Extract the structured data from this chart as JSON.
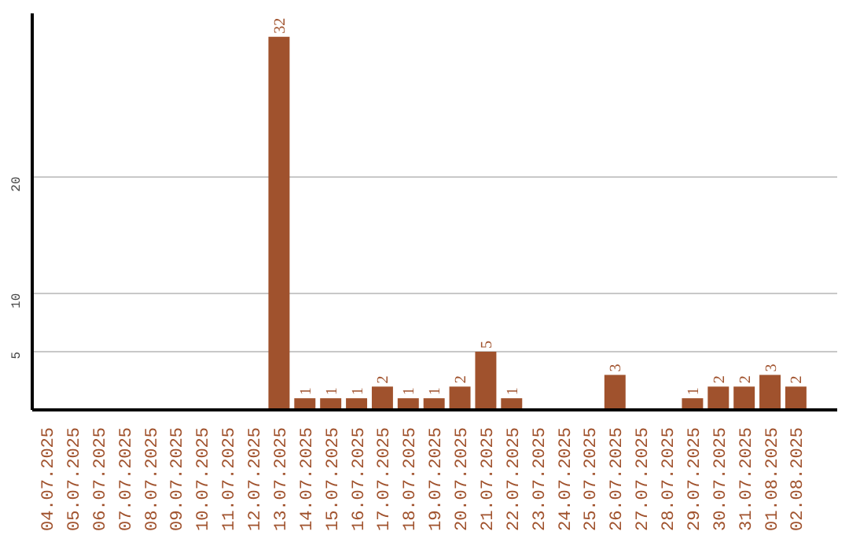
{
  "chart_data": {
    "type": "bar",
    "categories": [
      "04.07.2025",
      "05.07.2025",
      "06.07.2025",
      "07.07.2025",
      "08.07.2025",
      "09.07.2025",
      "10.07.2025",
      "11.07.2025",
      "12.07.2025",
      "13.07.2025",
      "14.07.2025",
      "15.07.2025",
      "16.07.2025",
      "17.07.2025",
      "18.07.2025",
      "19.07.2025",
      "20.07.2025",
      "21.07.2025",
      "22.07.2025",
      "23.07.2025",
      "24.07.2025",
      "25.07.2025",
      "26.07.2025",
      "27.07.2025",
      "28.07.2025",
      "29.07.2025",
      "30.07.2025",
      "31.07.2025",
      "01.08.2025",
      "02.08.2025"
    ],
    "values": [
      0,
      0,
      0,
      0,
      0,
      0,
      0,
      0,
      0,
      32,
      1,
      1,
      1,
      2,
      1,
      1,
      2,
      5,
      1,
      0,
      0,
      0,
      3,
      0,
      0,
      1,
      2,
      2,
      3,
      2
    ],
    "value_labels": [
      null,
      null,
      null,
      null,
      null,
      null,
      null,
      null,
      null,
      "32",
      "1",
      "1",
      "1",
      "2",
      "1",
      "1",
      "2",
      "5",
      "1",
      null,
      null,
      null,
      "3",
      null,
      null,
      "1",
      "2",
      "2",
      "3",
      "2"
    ],
    "color": "#a0522d",
    "ylim": [
      0,
      34
    ],
    "yticks": [
      5,
      10,
      20
    ],
    "grid": "y"
  }
}
